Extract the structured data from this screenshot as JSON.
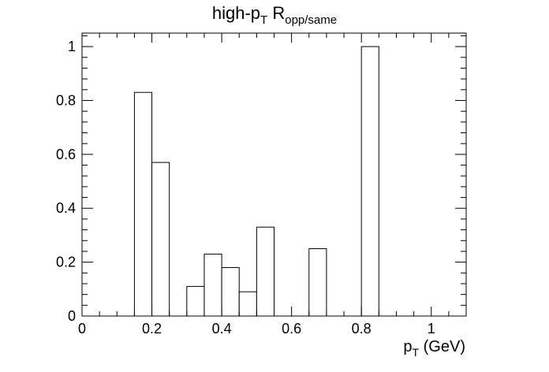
{
  "chart_data": {
    "type": "bar",
    "title": {
      "base": "high-p",
      "base_sub": "T",
      "symbol": "R",
      "symbol_sub": "opp/same"
    },
    "xlabel": {
      "base": "p",
      "base_sub": "T",
      "rest": " (GeV)"
    },
    "ylabel": "",
    "xlim": [
      0,
      1.1
    ],
    "ylim": [
      0,
      1.05
    ],
    "x_ticks": [
      "0",
      "0.2",
      "0.4",
      "0.6",
      "0.8",
      "1"
    ],
    "y_ticks": [
      "0",
      "0.2",
      "0.4",
      "0.6",
      "0.8",
      "1"
    ],
    "bin_width": 0.05,
    "bins": [
      {
        "x": 0.15,
        "value": 0.83
      },
      {
        "x": 0.2,
        "value": 0.57
      },
      {
        "x": 0.3,
        "value": 0.11
      },
      {
        "x": 0.35,
        "value": 0.23
      },
      {
        "x": 0.4,
        "value": 0.18
      },
      {
        "x": 0.45,
        "value": 0.09
      },
      {
        "x": 0.5,
        "value": 0.33
      },
      {
        "x": 0.65,
        "value": 0.25
      },
      {
        "x": 0.8,
        "value": 1.0
      }
    ],
    "grid": false,
    "legend": "none",
    "colors": {
      "line": "#000000",
      "fill": "#ffffff"
    }
  }
}
